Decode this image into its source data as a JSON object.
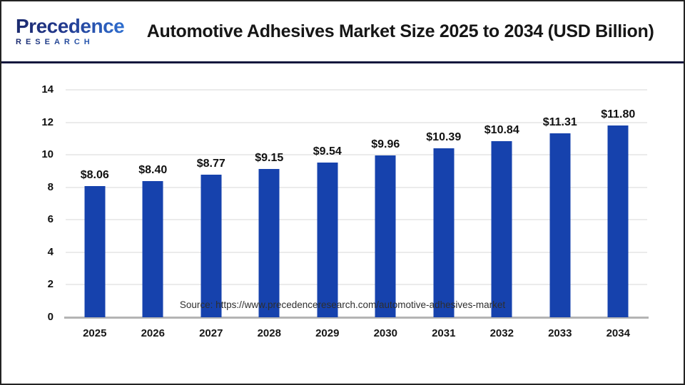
{
  "header": {
    "logo": {
      "line1": "Precedence",
      "line2": "RESEARCH"
    },
    "title": "Automotive Adhesives Market Size 2025 to 2034 (USD Billion)"
  },
  "footer": {
    "source": "Source: https://www.precedenceresearch.com/automotive-adhesives-market"
  },
  "chart_data": {
    "type": "bar",
    "title": "Automotive Adhesives Market Size 2025 to 2034 (USD Billion)",
    "categories": [
      "2025",
      "2026",
      "2027",
      "2028",
      "2029",
      "2030",
      "2031",
      "2032",
      "2033",
      "2034"
    ],
    "values": [
      8.06,
      8.4,
      8.77,
      9.15,
      9.54,
      9.96,
      10.39,
      10.84,
      11.31,
      11.8
    ],
    "value_labels": [
      "$8.06",
      "$8.40",
      "$8.77",
      "$9.15",
      "$9.54",
      "$9.96",
      "$10.39",
      "$10.84",
      "$11.31",
      "$11.80"
    ],
    "xlabel": "",
    "ylabel": "",
    "ylim": [
      0,
      14
    ],
    "yticks": [
      0,
      2,
      4,
      6,
      8,
      10,
      12,
      14
    ],
    "grid": true,
    "legend": false,
    "bar_color": "#1642ad",
    "gridline_color": "#ebebeb",
    "baseline_color": "#b4b4b4",
    "accent_navy": "#12173d"
  }
}
